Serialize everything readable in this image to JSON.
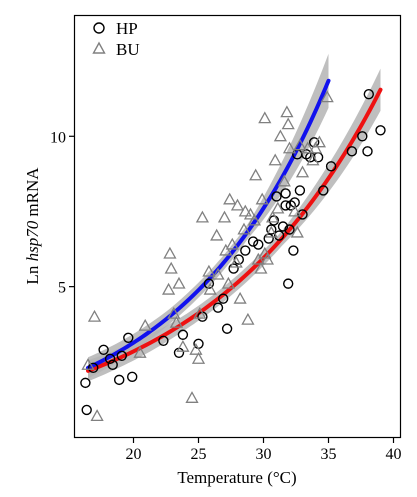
{
  "chart_data": {
    "type": "scatter",
    "xlabel": "Temperature (°C)",
    "ylabel_prefix": "Ln ",
    "ylabel_italic": "hsp70",
    "ylabel_suffix": " mRNA",
    "xlim": [
      15.5,
      40.5
    ],
    "ylim": [
      0,
      14
    ],
    "xticks": [
      20,
      25,
      30,
      35,
      40
    ],
    "yticks": [
      5,
      10
    ],
    "grid": false,
    "legend_position": "top-left",
    "series": [
      {
        "name": "HP",
        "marker": "circle",
        "color": "#000000",
        "points": [
          [
            16.3,
            1.8
          ],
          [
            16.4,
            0.9
          ],
          [
            16.9,
            2.3
          ],
          [
            17.7,
            2.9
          ],
          [
            18.2,
            2.6
          ],
          [
            18.4,
            2.4
          ],
          [
            18.9,
            1.9
          ],
          [
            19.1,
            2.7
          ],
          [
            19.6,
            3.3
          ],
          [
            19.9,
            2.0
          ],
          [
            22.3,
            3.2
          ],
          [
            23.5,
            2.8
          ],
          [
            23.8,
            3.4
          ],
          [
            25.0,
            3.1
          ],
          [
            25.3,
            4.0
          ],
          [
            25.8,
            5.1
          ],
          [
            26.5,
            4.3
          ],
          [
            26.9,
            4.6
          ],
          [
            27.2,
            3.6
          ],
          [
            27.7,
            5.6
          ],
          [
            28.1,
            5.9
          ],
          [
            28.6,
            6.2
          ],
          [
            29.2,
            6.5
          ],
          [
            29.6,
            6.4
          ],
          [
            30.4,
            6.6
          ],
          [
            30.6,
            6.9
          ],
          [
            30.8,
            7.2
          ],
          [
            31.0,
            8.0
          ],
          [
            31.2,
            6.7
          ],
          [
            31.5,
            7.0
          ],
          [
            31.7,
            7.7
          ],
          [
            31.7,
            8.1
          ],
          [
            31.9,
            5.1
          ],
          [
            32.0,
            6.9
          ],
          [
            32.1,
            7.7
          ],
          [
            32.3,
            6.2
          ],
          [
            32.4,
            7.8
          ],
          [
            32.6,
            9.4
          ],
          [
            32.8,
            8.2
          ],
          [
            33.0,
            7.4
          ],
          [
            33.3,
            9.4
          ],
          [
            33.6,
            9.3
          ],
          [
            33.9,
            9.8
          ],
          [
            34.2,
            9.3
          ],
          [
            34.6,
            8.2
          ],
          [
            35.2,
            9.0
          ],
          [
            36.8,
            9.5
          ],
          [
            37.6,
            10.0
          ],
          [
            38.0,
            9.5
          ],
          [
            38.1,
            11.4
          ],
          [
            39.0,
            10.2
          ]
        ]
      },
      {
        "name": "BU",
        "marker": "triangle",
        "color": "#808080",
        "points": [
          [
            16.5,
            2.4
          ],
          [
            17.0,
            4.0
          ],
          [
            17.2,
            0.7
          ],
          [
            20.5,
            2.8
          ],
          [
            20.9,
            3.7
          ],
          [
            22.7,
            4.9
          ],
          [
            22.8,
            6.1
          ],
          [
            22.9,
            5.6
          ],
          [
            23.1,
            4.1
          ],
          [
            23.3,
            3.8
          ],
          [
            23.5,
            5.1
          ],
          [
            23.8,
            3.0
          ],
          [
            24.5,
            1.3
          ],
          [
            24.8,
            2.9
          ],
          [
            25.0,
            2.6
          ],
          [
            25.1,
            4.1
          ],
          [
            25.3,
            7.3
          ],
          [
            25.8,
            5.5
          ],
          [
            25.9,
            4.9
          ],
          [
            26.4,
            6.7
          ],
          [
            26.5,
            5.4
          ],
          [
            27.0,
            7.3
          ],
          [
            27.1,
            6.2
          ],
          [
            27.3,
            5.1
          ],
          [
            27.4,
            7.9
          ],
          [
            27.6,
            6.4
          ],
          [
            27.9,
            5.8
          ],
          [
            28.0,
            7.7
          ],
          [
            28.2,
            4.6
          ],
          [
            28.5,
            6.9
          ],
          [
            28.6,
            7.5
          ],
          [
            28.8,
            3.9
          ],
          [
            29.0,
            7.4
          ],
          [
            29.3,
            7.2
          ],
          [
            29.4,
            8.7
          ],
          [
            29.6,
            5.9
          ],
          [
            29.8,
            5.6
          ],
          [
            29.9,
            7.9
          ],
          [
            30.1,
            6.1
          ],
          [
            30.1,
            10.6
          ],
          [
            30.3,
            5.9
          ],
          [
            30.6,
            6.8
          ],
          [
            30.7,
            7.3
          ],
          [
            30.9,
            9.2
          ],
          [
            31.1,
            7.6
          ],
          [
            31.3,
            10.0
          ],
          [
            31.6,
            8.5
          ],
          [
            31.8,
            10.8
          ],
          [
            31.9,
            10.4
          ],
          [
            32.0,
            9.6
          ],
          [
            32.4,
            7.5
          ],
          [
            32.6,
            6.8
          ],
          [
            32.8,
            9.7
          ],
          [
            33.0,
            8.8
          ],
          [
            33.4,
            9.6
          ],
          [
            33.8,
            9.2
          ],
          [
            34.0,
            9.6
          ],
          [
            34.3,
            9.8
          ],
          [
            34.9,
            11.3
          ]
        ]
      }
    ],
    "fits": [
      {
        "name": "HP",
        "color": "#ee1111",
        "x_range": [
          16.5,
          39.0
        ],
        "a": 2.2,
        "b": 0.0737,
        "x0": 16.5,
        "band_half_width": [
          0.35,
          0.25,
          0.25,
          0.7
        ]
      },
      {
        "name": "BU",
        "color": "#1111ee",
        "x_range": [
          16.5,
          35.0
        ],
        "a": 2.3,
        "b": 0.0886,
        "x0": 16.5,
        "band_half_width": [
          0.35,
          0.25,
          0.25,
          0.9
        ]
      }
    ]
  }
}
